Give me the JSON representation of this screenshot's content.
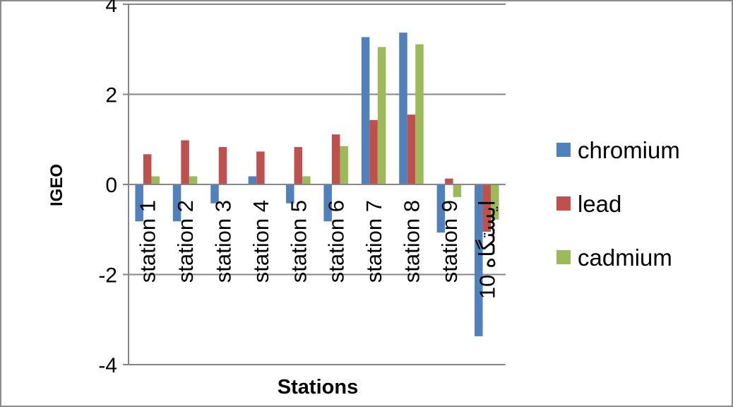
{
  "chart_data": {
    "type": "bar",
    "title": "",
    "xlabel": "Stations",
    "ylabel": "IGEO",
    "ylim": [
      -4,
      4
    ],
    "yticks": [
      -4,
      -2,
      0,
      2,
      4
    ],
    "grid": true,
    "legend_position": "right",
    "categories": [
      "station 1",
      "station 2",
      "station 3",
      "station 4",
      "station 5",
      "station 6",
      "station 7",
      "station 8",
      "station 9",
      "ایستگاه 10"
    ],
    "series": [
      {
        "name": "chromium",
        "color": "#4F81BD",
        "values": [
          -0.82,
          -0.82,
          -0.42,
          0.18,
          -0.42,
          -0.82,
          3.27,
          3.37,
          -1.07,
          -3.37
        ]
      },
      {
        "name": "lead",
        "color": "#C0504D",
        "values": [
          0.67,
          0.98,
          0.83,
          0.73,
          0.83,
          1.11,
          1.43,
          1.55,
          0.13,
          -1.05
        ]
      },
      {
        "name": "cadmium",
        "color": "#9BBB59",
        "values": [
          0.18,
          0.18,
          0.0,
          0.0,
          0.18,
          0.85,
          3.05,
          3.11,
          -0.28,
          -0.78
        ]
      }
    ]
  }
}
